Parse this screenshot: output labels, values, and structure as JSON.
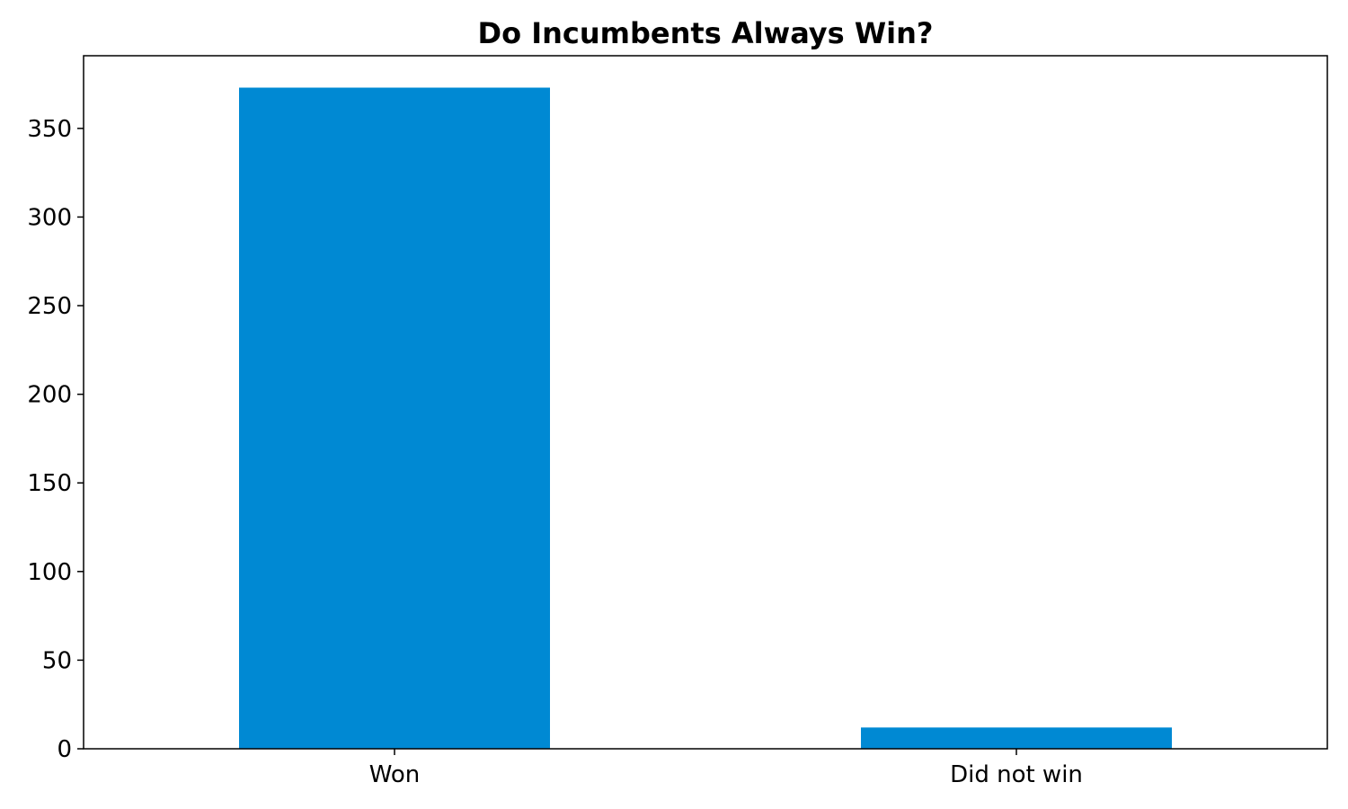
{
  "chart_data": {
    "type": "bar",
    "title": "Do Incumbents Always Win?",
    "xlabel": "",
    "ylabel": "",
    "categories": [
      "Won",
      "Did not win"
    ],
    "values": [
      373,
      12
    ],
    "ylim": [
      0,
      391
    ],
    "yticks": [
      0,
      50,
      100,
      150,
      200,
      250,
      300,
      350
    ],
    "bar_color": "#0089d3",
    "grid": false,
    "legend": "none"
  }
}
